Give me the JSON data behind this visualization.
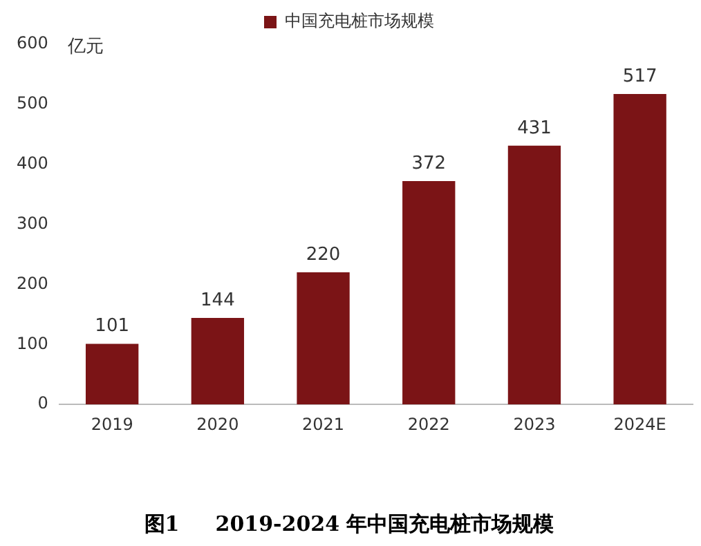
{
  "chart_data": {
    "type": "bar",
    "title": "图1     2019-2024 年中国充电桩市场规模",
    "ylabel": "亿元",
    "categories": [
      "2019",
      "2020",
      "2021",
      "2022",
      "2023",
      "2024E"
    ],
    "series": [
      {
        "name": "中国充电桩市场规模",
        "color": "#7b1416",
        "values": [
          101,
          144,
          220,
          372,
          431,
          517
        ]
      }
    ],
    "ylim": [
      0,
      600
    ],
    "yticks": [
      0,
      100,
      200,
      300,
      400,
      500,
      600
    ],
    "grid": false,
    "legend": "top",
    "data_labels": true
  }
}
